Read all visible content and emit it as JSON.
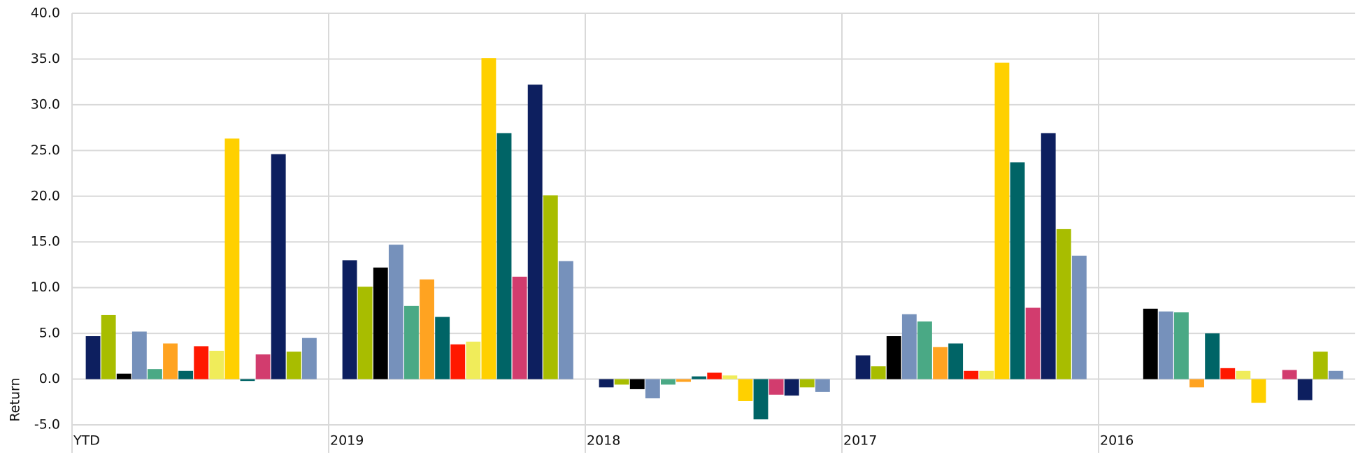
{
  "chart_data": {
    "type": "bar",
    "y_label": "Return",
    "categories": [
      "YTD",
      "2019",
      "2018",
      "2017",
      "2016"
    ],
    "ylim": [
      -5,
      40
    ],
    "yticks": [
      {
        "value": -5,
        "label": "-5.0"
      },
      {
        "value": 0,
        "label": "0.0"
      },
      {
        "value": 5,
        "label": "5.0"
      },
      {
        "value": 10,
        "label": "10.0"
      },
      {
        "value": 15,
        "label": "15.0"
      },
      {
        "value": 20,
        "label": "20.0"
      },
      {
        "value": 25,
        "label": "25.0"
      },
      {
        "value": 30,
        "label": "30.0"
      },
      {
        "value": 35,
        "label": "35.0"
      },
      {
        "value": 40,
        "label": "40.0"
      }
    ],
    "grid": true,
    "series": [
      {
        "color": "#0d1f5f",
        "values": [
          4.7,
          13.0,
          -0.9,
          2.6,
          null
        ]
      },
      {
        "color": "#a8bd00",
        "values": [
          7.0,
          10.1,
          -0.6,
          1.4,
          null
        ]
      },
      {
        "color": "#000000",
        "values": [
          0.6,
          12.2,
          -1.1,
          4.7,
          7.7
        ]
      },
      {
        "color": "#7691bb",
        "values": [
          5.2,
          14.7,
          -2.1,
          7.1,
          7.4
        ]
      },
      {
        "color": "#4aa985",
        "values": [
          1.1,
          8.0,
          -0.6,
          6.3,
          7.3
        ]
      },
      {
        "color": "#ffa321",
        "values": [
          3.9,
          10.9,
          -0.3,
          3.5,
          -0.9
        ]
      },
      {
        "color": "#006466",
        "values": [
          0.9,
          6.8,
          0.3,
          3.9,
          5.0
        ]
      },
      {
        "color": "#ff1800",
        "values": [
          3.6,
          3.8,
          0.7,
          0.9,
          1.2
        ]
      },
      {
        "color": "#f0ec5a",
        "values": [
          3.1,
          4.1,
          0.4,
          0.9,
          0.9
        ]
      },
      {
        "color": "#ffd000",
        "values": [
          26.3,
          35.1,
          -2.4,
          34.6,
          -2.6
        ]
      },
      {
        "color": "#006466",
        "values": [
          -0.2,
          26.9,
          -4.4,
          23.7,
          null
        ]
      },
      {
        "color": "#d23c6e",
        "values": [
          2.7,
          11.2,
          -1.7,
          7.8,
          1.0
        ]
      },
      {
        "color": "#0d1f5f",
        "values": [
          24.6,
          32.2,
          -1.8,
          26.9,
          -2.3
        ]
      },
      {
        "color": "#a8bd00",
        "values": [
          3.0,
          20.1,
          -0.9,
          16.4,
          3.0
        ]
      },
      {
        "color": "#7691bb",
        "values": [
          4.5,
          12.9,
          -1.4,
          13.5,
          0.9
        ]
      }
    ]
  }
}
